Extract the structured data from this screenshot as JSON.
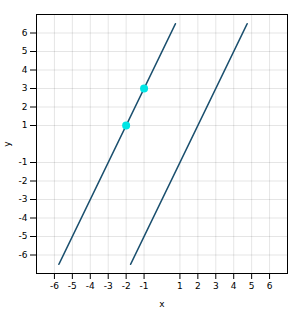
{
  "chart_data": {
    "type": "line",
    "xlabel": "x",
    "ylabel": "y",
    "xlim": [
      -7,
      7
    ],
    "ylim": [
      -7,
      7
    ],
    "xticks": [
      -6,
      -5,
      -4,
      -3,
      -2,
      -1,
      1,
      2,
      3,
      4,
      5,
      6
    ],
    "yticks": [
      -6,
      -5,
      -4,
      -3,
      -2,
      -1,
      1,
      2,
      3,
      4,
      5,
      6
    ],
    "grid": true,
    "series": [
      {
        "type": "line",
        "color": "#1a4f6e",
        "x": [
          -5.75,
          0.75
        ],
        "values": [
          -6.5,
          6.5
        ]
      },
      {
        "type": "line",
        "color": "#1a4f6e",
        "x": [
          -1.75,
          4.75
        ],
        "values": [
          -6.5,
          6.5
        ]
      },
      {
        "type": "scatter",
        "color": "#00e5e5",
        "x": [
          -2,
          -1
        ],
        "values": [
          1,
          3
        ]
      }
    ]
  }
}
